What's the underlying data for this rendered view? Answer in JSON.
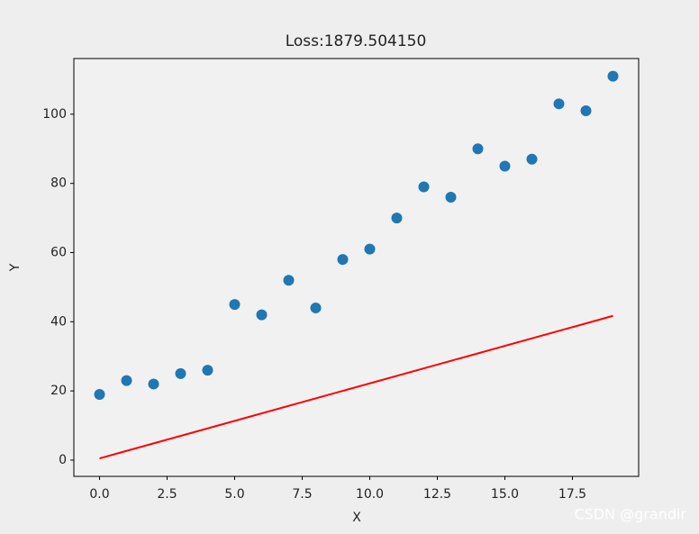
{
  "chart_data": {
    "type": "scatter",
    "title": "Loss:1879.504150",
    "xlabel": "X",
    "ylabel": "Y",
    "series": [
      {
        "type": "scatter",
        "color": "#1f77b4",
        "x": [
          0,
          1,
          2,
          3,
          4,
          5,
          6,
          7,
          8,
          9,
          10,
          11,
          12,
          13,
          14,
          15,
          16,
          17,
          18,
          19
        ],
        "values": [
          19,
          23,
          22,
          25,
          26,
          45,
          42,
          52,
          44,
          58,
          61,
          70,
          79,
          76,
          90,
          85,
          87,
          103,
          101,
          111
        ]
      },
      {
        "type": "line",
        "color": "#ff0000",
        "x": [
          0,
          19
        ],
        "values": [
          0.5,
          41.7
        ]
      }
    ],
    "xlim": [
      -0.95,
      19.95
    ],
    "xticks": [
      {
        "value": 0,
        "label": "0.0"
      },
      {
        "value": 2.5,
        "label": "2.5"
      },
      {
        "value": 5,
        "label": "5.0"
      },
      {
        "value": 7.5,
        "label": "7.5"
      },
      {
        "value": 10,
        "label": "10.0"
      },
      {
        "value": 12.5,
        "label": "12.5"
      },
      {
        "value": 15,
        "label": "15.0"
      },
      {
        "value": 17.5,
        "label": "17.5"
      }
    ],
    "ylim": [
      -4.7,
      116.1
    ],
    "yticks": [
      0,
      20,
      40,
      60,
      80,
      100
    ],
    "grid": false
  },
  "watermark": "CSDN @grandir"
}
